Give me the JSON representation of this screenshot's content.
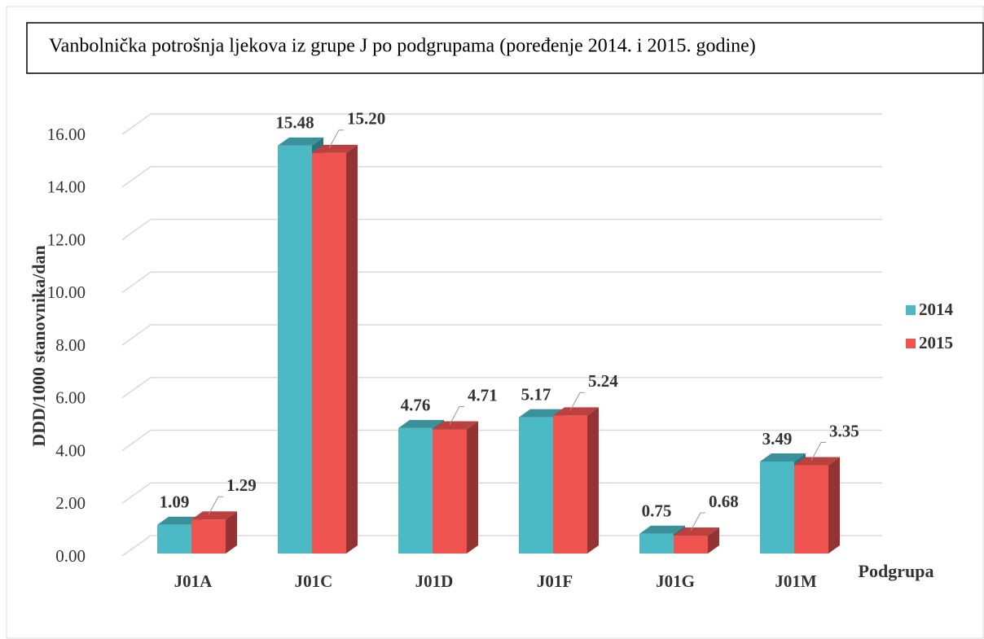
{
  "chart_data": {
    "type": "bar3d",
    "title": "Vanbolnička potrošnja ljekova iz grupe J po podgrupama (poređenje 2014. i 2015. godine)",
    "x_label": "Podgrupa",
    "y_label": "DDD/1000 stanovnika/dan",
    "categories": [
      "J01A",
      "J01C",
      "J01D",
      "J01F",
      "J01G",
      "J01M"
    ],
    "series": [
      {
        "name": "2014",
        "color": "#4bbac4",
        "values": [
          1.09,
          15.48,
          4.76,
          5.17,
          0.75,
          3.49
        ],
        "value_labels": [
          "1.09",
          "15.48",
          "4.76",
          "5.17",
          "0.75",
          "3.49"
        ]
      },
      {
        "name": "2015",
        "color": "#ef5350",
        "values": [
          1.29,
          15.2,
          4.71,
          5.24,
          0.68,
          3.35
        ],
        "value_labels": [
          "1.29",
          "15.20",
          "4.71",
          "5.24",
          "0.68",
          "3.35"
        ]
      }
    ],
    "ylim": [
      0,
      16
    ],
    "yticks": [
      {
        "value": 0,
        "label": "0.00"
      },
      {
        "value": 2,
        "label": "2.00"
      },
      {
        "value": 4,
        "label": "4.00"
      },
      {
        "value": 6,
        "label": "6.00"
      },
      {
        "value": 8,
        "label": "8.00"
      },
      {
        "value": 10,
        "label": "10.00"
      },
      {
        "value": 12,
        "label": "12.00"
      },
      {
        "value": 14,
        "label": "14.00"
      },
      {
        "value": 16,
        "label": "16.00"
      }
    ],
    "grid": true,
    "legend": "right"
  }
}
